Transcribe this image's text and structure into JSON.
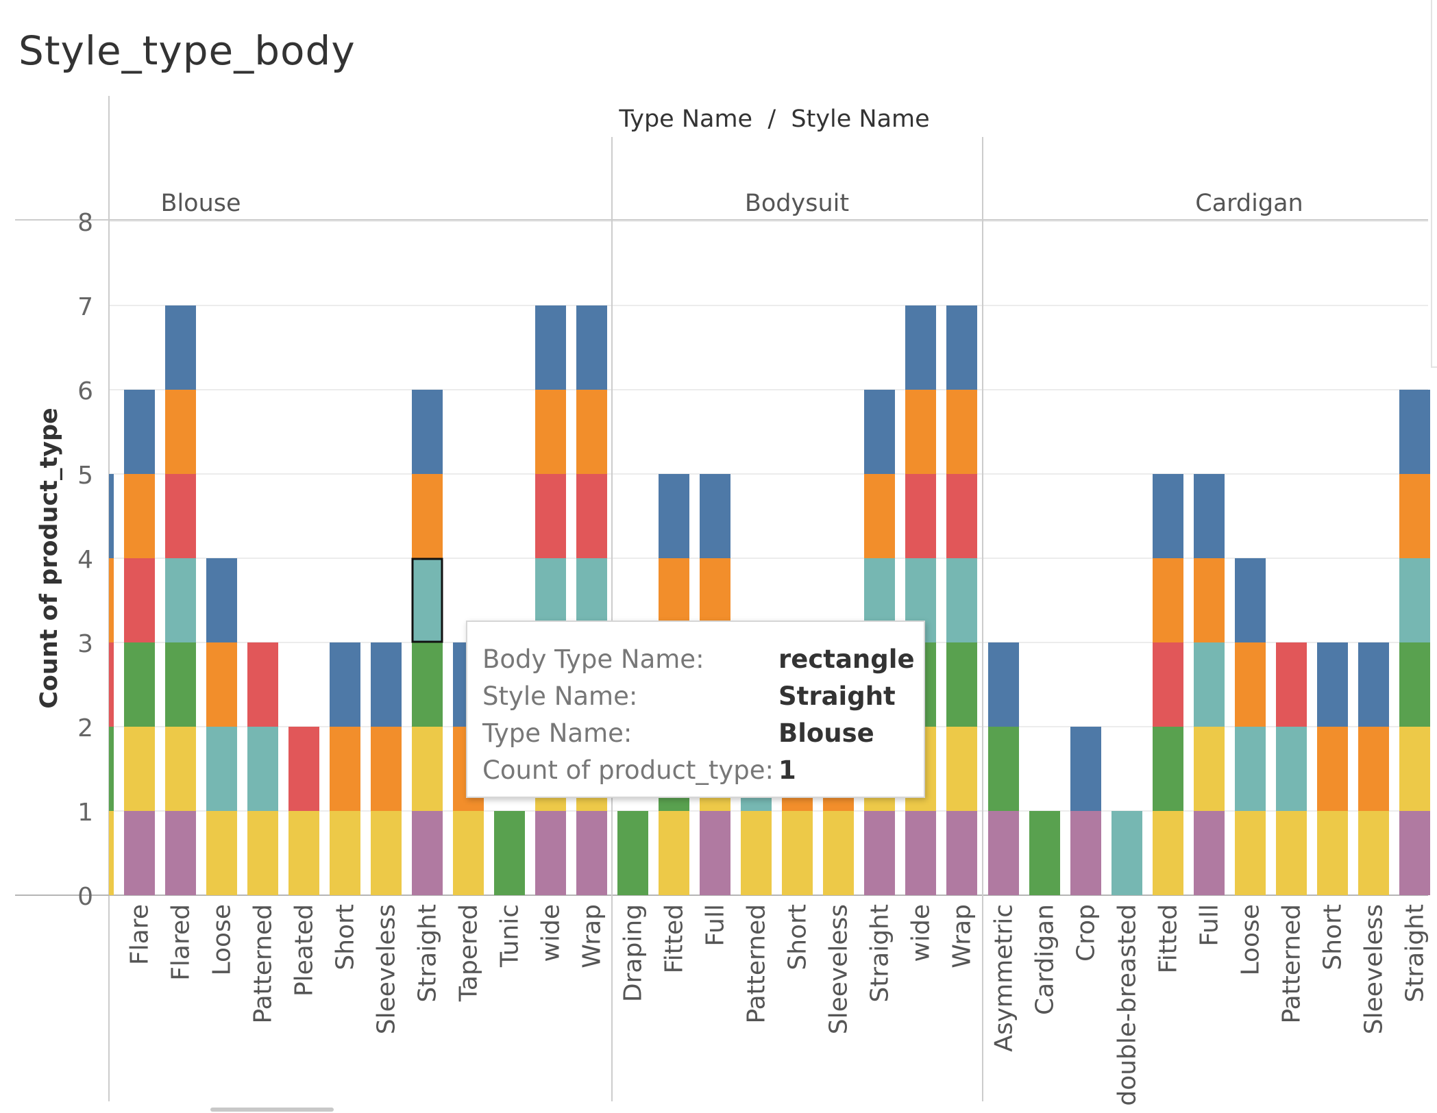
{
  "title": "Style_type_body",
  "header_title": "Type Name  /  Style Name",
  "yaxis_label": "Count of product_type",
  "colors": {
    "purple": "#b07aa1",
    "yellow": "#edc948",
    "green": "#59a14f",
    "teal": "#76b7b2",
    "red": "#e15759",
    "orange": "#f28e2b",
    "blue": "#4e79a7"
  },
  "chart_data": {
    "type": "bar",
    "stacked": true,
    "ylim": [
      0,
      8
    ],
    "yticks": [
      0,
      1,
      2,
      3,
      4,
      5,
      6,
      7,
      8
    ],
    "grid": true,
    "panels": [
      {
        "name": "Blouse",
        "bars": [
          {
            "label": "",
            "stack": [
              "yellow",
              "green",
              "red",
              "orange",
              "blue"
            ]
          },
          {
            "label": "Flare",
            "stack": [
              "purple",
              "yellow",
              "green",
              "red",
              "orange",
              "blue"
            ]
          },
          {
            "label": "Flared",
            "stack": [
              "purple",
              "yellow",
              "green",
              "teal",
              "red",
              "orange",
              "blue"
            ]
          },
          {
            "label": "Loose",
            "stack": [
              "yellow",
              "teal",
              "orange",
              "blue"
            ]
          },
          {
            "label": "Patterned",
            "stack": [
              "yellow",
              "teal",
              "red"
            ]
          },
          {
            "label": "Pleated",
            "stack": [
              "yellow",
              "red"
            ]
          },
          {
            "label": "Short",
            "stack": [
              "yellow",
              "orange",
              "blue"
            ]
          },
          {
            "label": "Sleeveless",
            "stack": [
              "yellow",
              "orange",
              "blue"
            ]
          },
          {
            "label": "Straight",
            "stack": [
              "purple",
              "yellow",
              "green",
              "teal",
              "orange",
              "blue"
            ]
          },
          {
            "label": "Tapered",
            "stack": [
              "yellow",
              "orange",
              "blue"
            ]
          },
          {
            "label": "Tunic",
            "stack": [
              "green"
            ]
          },
          {
            "label": "wide",
            "stack": [
              "purple",
              "yellow",
              "green",
              "teal",
              "red",
              "orange",
              "blue"
            ]
          },
          {
            "label": "Wrap",
            "stack": [
              "purple",
              "yellow",
              "green",
              "teal",
              "red",
              "orange",
              "blue"
            ]
          }
        ]
      },
      {
        "name": "Bodysuit",
        "bars": [
          {
            "label": "Draping",
            "stack": [
              "green"
            ]
          },
          {
            "label": "Fitted",
            "stack": [
              "yellow",
              "green",
              "teal",
              "orange",
              "blue"
            ]
          },
          {
            "label": "Full",
            "stack": [
              "purple",
              "yellow",
              "green",
              "orange",
              "blue"
            ]
          },
          {
            "label": "Patterned",
            "stack": [
              "yellow",
              "teal"
            ]
          },
          {
            "label": "Short",
            "stack": [
              "yellow",
              "orange"
            ]
          },
          {
            "label": "Sleeveless",
            "stack": [
              "yellow",
              "orange"
            ]
          },
          {
            "label": "Straight",
            "stack": [
              "purple",
              "yellow",
              "green",
              "teal",
              "orange",
              "blue"
            ]
          },
          {
            "label": "wide",
            "stack": [
              "purple",
              "yellow",
              "green",
              "teal",
              "red",
              "orange",
              "blue"
            ]
          },
          {
            "label": "Wrap",
            "stack": [
              "purple",
              "yellow",
              "green",
              "teal",
              "red",
              "orange",
              "blue"
            ]
          }
        ]
      },
      {
        "name": "Cardigan",
        "bars": [
          {
            "label": "Asymmetric",
            "stack": [
              "purple",
              "green",
              "blue"
            ]
          },
          {
            "label": "Cardigan",
            "stack": [
              "green"
            ]
          },
          {
            "label": "Crop",
            "stack": [
              "purple",
              "blue"
            ]
          },
          {
            "label": "double-breasted",
            "stack": [
              "teal"
            ]
          },
          {
            "label": "Fitted",
            "stack": [
              "yellow",
              "green",
              "red",
              "orange",
              "blue"
            ]
          },
          {
            "label": "Full",
            "stack": [
              "purple",
              "yellow",
              "teal",
              "orange",
              "blue"
            ]
          },
          {
            "label": "Loose",
            "stack": [
              "yellow",
              "teal",
              "orange",
              "blue"
            ]
          },
          {
            "label": "Patterned",
            "stack": [
              "yellow",
              "teal",
              "red"
            ]
          },
          {
            "label": "Short",
            "stack": [
              "yellow",
              "orange",
              "blue"
            ]
          },
          {
            "label": "Sleeveless",
            "stack": [
              "yellow",
              "orange",
              "blue"
            ]
          },
          {
            "label": "Straight",
            "stack": [
              "purple",
              "yellow",
              "green",
              "teal",
              "orange",
              "blue"
            ]
          }
        ]
      }
    ]
  },
  "tooltip": {
    "rows": [
      {
        "label": "Body Type Name:",
        "value": "rectangle"
      },
      {
        "label": "Style Name:",
        "value": "Straight"
      },
      {
        "label": "Type Name:",
        "value": "Blouse"
      },
      {
        "label": "Count of product_type:",
        "value": "1"
      }
    ]
  }
}
